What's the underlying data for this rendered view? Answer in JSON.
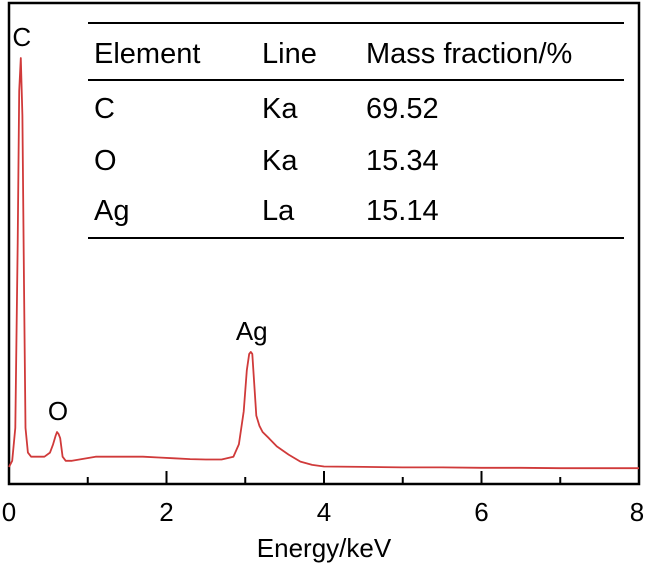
{
  "chart_data": {
    "type": "line",
    "xlabel": "Energy/keV",
    "ylabel": "",
    "xlim": [
      0,
      8
    ],
    "ylim": [
      0,
      100
    ],
    "x_ticks": [
      0,
      2,
      4,
      6,
      8
    ],
    "x_minor_ticks": [
      1,
      3,
      5,
      7
    ],
    "grid": false,
    "series_color": "#d03a3a",
    "series": [
      {
        "name": "",
        "x": [
          0.0,
          0.04,
          0.08,
          0.11,
          0.13,
          0.15,
          0.17,
          0.19,
          0.21,
          0.24,
          0.28,
          0.35,
          0.45,
          0.52,
          0.56,
          0.59,
          0.61,
          0.63,
          0.65,
          0.68,
          0.72,
          0.8,
          0.95,
          1.1,
          1.3,
          1.5,
          1.7,
          1.9,
          2.1,
          2.3,
          2.5,
          2.7,
          2.85,
          2.92,
          2.98,
          3.02,
          3.05,
          3.07,
          3.09,
          3.11,
          3.14,
          3.18,
          3.22,
          3.3,
          3.4,
          3.55,
          3.7,
          3.85,
          4.0,
          4.5,
          5.0,
          5.5,
          6.0,
          6.5,
          7.0,
          7.5,
          8.0
        ],
        "y": [
          0.5,
          2.0,
          10.0,
          55.0,
          92.0,
          100.0,
          86.0,
          45.0,
          10.0,
          4.0,
          3.0,
          3.0,
          3.0,
          4.0,
          6.0,
          8.0,
          9.0,
          8.5,
          7.5,
          3.0,
          2.0,
          2.0,
          2.5,
          3.0,
          3.0,
          3.0,
          3.0,
          2.8,
          2.6,
          2.4,
          2.3,
          2.3,
          3.0,
          6.0,
          14.0,
          24.0,
          28.0,
          28.5,
          28.0,
          22.0,
          13.0,
          10.5,
          9.0,
          7.5,
          5.5,
          3.5,
          1.8,
          1.0,
          0.6,
          0.5,
          0.4,
          0.4,
          0.3,
          0.3,
          0.2,
          0.2,
          0.2
        ]
      }
    ],
    "annotations": [
      {
        "text": "C",
        "x": 0.15,
        "y": 100.0
      },
      {
        "text": "O",
        "x": 0.61,
        "y": 9.0
      },
      {
        "text": "Ag",
        "x": 3.07,
        "y": 28.5
      }
    ],
    "table": {
      "headers": [
        "Element",
        "Line",
        "Mass fraction/%"
      ],
      "rows": [
        [
          "C",
          "Ka",
          "69.52"
        ],
        [
          "O",
          "Ka",
          "15.34"
        ],
        [
          "Ag",
          "La",
          "15.14"
        ]
      ]
    }
  }
}
